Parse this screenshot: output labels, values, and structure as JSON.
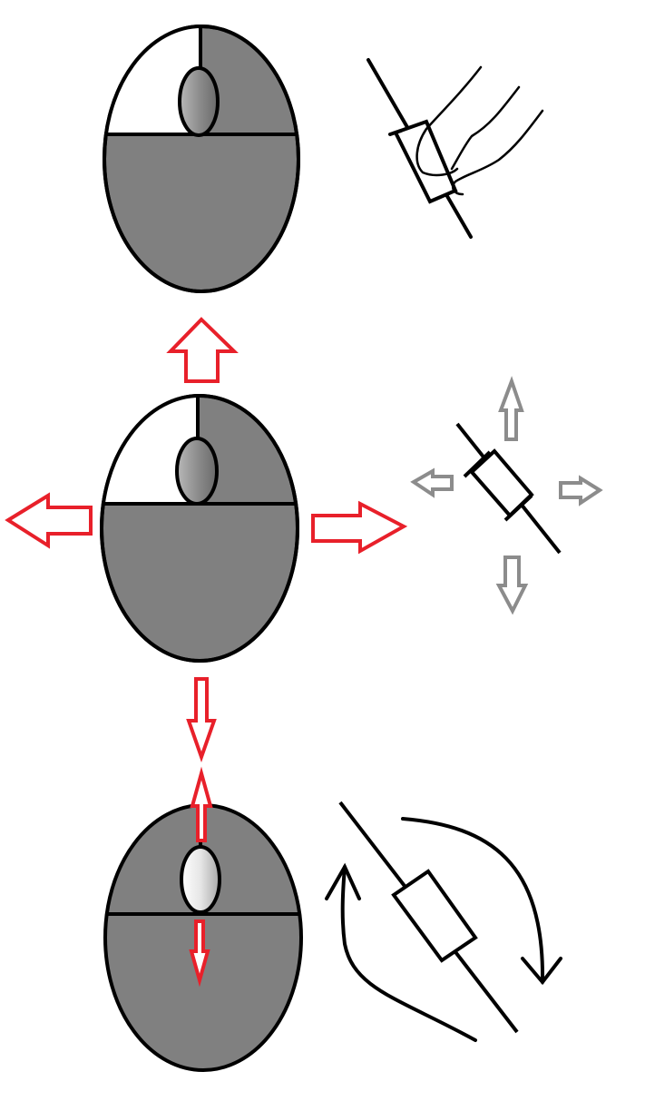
{
  "colors": {
    "background": "#ffffff",
    "outline": "#000000",
    "mouse_body": "#808080",
    "button_pressed": "#808080",
    "button_released": "#ffffff",
    "wheel_dark": "#6a6a6a",
    "wheel_light": "#b8b8b8",
    "wheel_highlight": "#f2f2f2",
    "arrow_red": "#e8202a",
    "arrow_gray": "#8c8c8c"
  },
  "panels": [
    {
      "id": "left-click",
      "mouse_state": "left-button-pressed",
      "illustration": "finger-pressing-rotated-resistor"
    },
    {
      "id": "drag-move",
      "mouse_state": "left-button-pressed-moving",
      "illustration": "resistor-with-four-direction-arrows"
    },
    {
      "id": "wheel-scroll",
      "mouse_state": "wheel-scrolling",
      "illustration": "resistor-with-rotation-arrows"
    }
  ],
  "icons": [
    "mouse-icon",
    "finger-icon",
    "resistor-icon",
    "arrow-up-icon",
    "arrow-down-icon",
    "arrow-left-icon",
    "arrow-right-icon",
    "rotate-arrow-icon"
  ]
}
